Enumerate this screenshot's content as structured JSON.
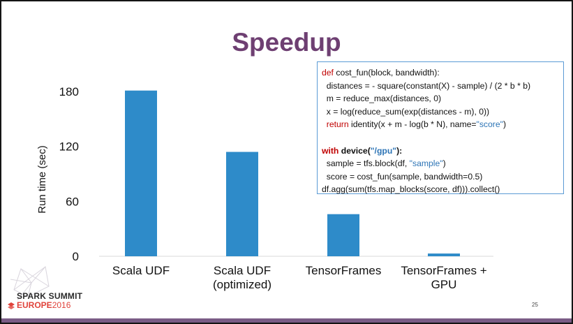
{
  "slide": {
    "title": "Speedup",
    "page_number": "25",
    "logo": {
      "line1": "SPARK SUMMIT",
      "line2": "EUROPE",
      "year": "2016"
    },
    "accent_color": "#6e3f72",
    "bar_color": "#2e8bc9"
  },
  "chart_data": {
    "type": "bar",
    "title": "",
    "xlabel": "",
    "ylabel": "Run time (sec)",
    "categories": [
      [
        "Scala UDF"
      ],
      [
        "Scala UDF",
        "(optimized)"
      ],
      [
        "TensorFrames"
      ],
      [
        "TensorFrames +",
        "GPU"
      ]
    ],
    "values": [
      181,
      114,
      46,
      3
    ],
    "ylim": [
      0,
      180
    ],
    "yticks": [
      "0",
      "60",
      "120",
      "180"
    ],
    "ytick_values": [
      0,
      60,
      120,
      180
    ],
    "grid": false,
    "legend": "none"
  },
  "code": {
    "lines": [
      [
        {
          "t": "def ",
          "c": "kw"
        },
        {
          "t": "cost_fun(block, bandwidth):"
        }
      ],
      [
        {
          "t": "  distances = - square(constant(X) - sample) / (2 * b * b)"
        }
      ],
      [
        {
          "t": "  m = reduce_max(distances, 0)"
        }
      ],
      [
        {
          "t": "  x = log(reduce_sum(exp(distances - m), 0))"
        }
      ],
      [
        {
          "t": "  "
        },
        {
          "t": "return",
          "c": "kw"
        },
        {
          "t": " identity(x + m - log(b * N), name="
        },
        {
          "t": "\"score\"",
          "c": "str"
        },
        {
          "t": ")"
        }
      ],
      [
        {
          "t": ""
        }
      ],
      [
        {
          "t": "with ",
          "c": "kw-bold"
        },
        {
          "t": "device(",
          "c": "bold"
        },
        {
          "t": "\"/gpu\"",
          "c": "str bold"
        },
        {
          "t": "):",
          "c": "bold"
        }
      ],
      [
        {
          "t": "  sample = tfs.block(df, "
        },
        {
          "t": "\"sample\"",
          "c": "str"
        },
        {
          "t": ")"
        }
      ],
      [
        {
          "t": "  score = cost_fun(sample, bandwidth=0.5)"
        }
      ],
      [
        {
          "t": "df.agg(sum(tfs.map_blocks(score, df))).collect()"
        }
      ]
    ]
  }
}
